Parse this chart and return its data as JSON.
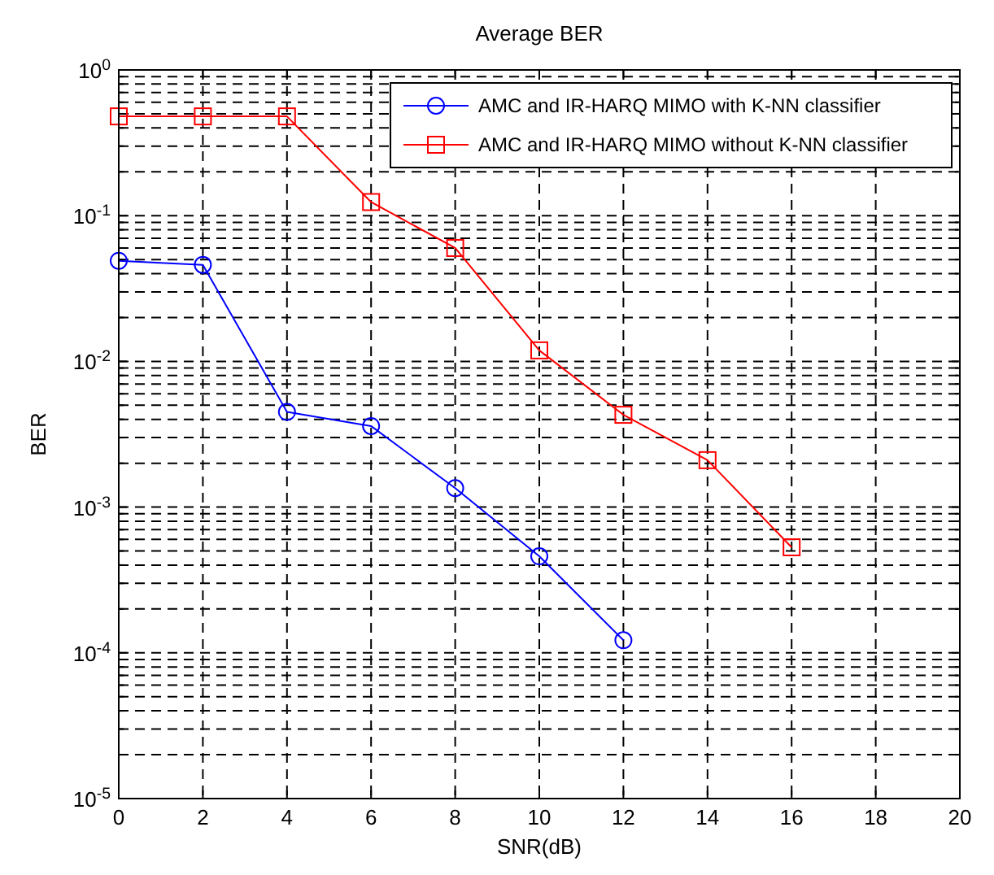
{
  "chart_data": {
    "type": "line",
    "title": "Average BER",
    "xlabel": "SNR(dB)",
    "ylabel": "BER",
    "x": [
      0,
      2,
      4,
      6,
      8,
      10,
      12,
      14,
      16
    ],
    "series": [
      {
        "name": "AMC and IR-HARQ MIMO with K-NN classifier",
        "color": "#0000ff",
        "marker": "circle",
        "values": [
          0.049,
          0.046,
          0.0045,
          0.0036,
          0.00135,
          0.00046,
          0.000122,
          null,
          null
        ]
      },
      {
        "name": "AMC and IR-HARQ MIMO without K-NN classifier",
        "color": "#ff0000",
        "marker": "square",
        "values": [
          0.48,
          0.48,
          0.48,
          0.124,
          0.06,
          0.0119,
          0.0043,
          0.0021,
          0.00053
        ]
      }
    ],
    "log": "y",
    "xlim": [
      0,
      20
    ],
    "xticks": [
      0,
      2,
      4,
      6,
      8,
      10,
      12,
      14,
      16,
      18,
      20
    ],
    "ylim": [
      1e-05,
      1
    ],
    "yticks": [
      {
        "value": 1e-05,
        "label": "10$^{-5}$"
      },
      {
        "value": 0.0001,
        "label": "10$^{-4}$"
      },
      {
        "value": 0.001,
        "label": "10$^{-3}$"
      },
      {
        "value": 0.01,
        "label": "10$^{-2}$"
      },
      {
        "value": 0.1,
        "label": "10$^{-1}$"
      },
      {
        "value": 1,
        "label": "10$^{0}$"
      }
    ],
    "grid": true,
    "legend": "top right",
    "line_style": "solid"
  }
}
